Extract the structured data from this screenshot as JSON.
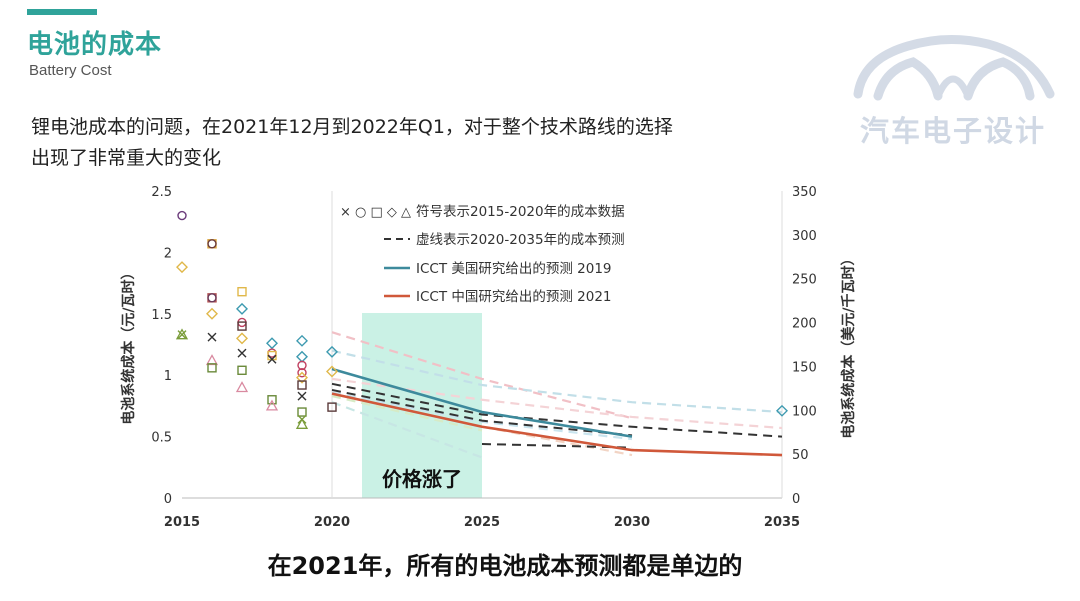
{
  "header": {
    "title": "电池的成本",
    "subtitle": "Battery Cost"
  },
  "body": {
    "line1": "锂电池成本的问题，在2021年12月到2022年Q1，对于整个技术路线的选择",
    "line2": "出现了非常重大的变化"
  },
  "logo": {
    "text": "汽车电子设计",
    "icon": "car-outline-logo"
  },
  "caption": "在2021年，所有的电池成本预测都是单边的",
  "colors": {
    "accent": "#2fa39a",
    "us_line": "#3d8a9c",
    "cn_line": "#d0583a",
    "dashed": "#333333",
    "highlight": "#b8ecdc"
  },
  "chart_data": {
    "type": "line",
    "ylabel": "电池系统成本（元/瓦时）",
    "y2label": "电池系统成本（美元/千瓦时）",
    "x_ticks": [
      "2015",
      "2020",
      "2025",
      "2030",
      "2035"
    ],
    "xlim": [
      2015,
      2035
    ],
    "ylim": [
      0,
      2.5
    ],
    "y_ticks": [
      "0",
      "0.5",
      "1",
      "1.5",
      "2",
      "2.5"
    ],
    "y2lim": [
      0,
      350
    ],
    "y2_ticks": [
      "0",
      "50",
      "100",
      "150",
      "200",
      "250",
      "300",
      "350"
    ],
    "legend": {
      "position": "top",
      "entries": [
        {
          "symbols": "× ○ □ ◇ △",
          "label": "符号表示2015-2020年的成本数据",
          "style": "symbols"
        },
        {
          "label": "虚线表示2020-2035年的成本预测",
          "style": "dashed"
        },
        {
          "label": "ICCT 美国研究给出的预测 2019",
          "style": "us"
        },
        {
          "label": "ICCT 中国研究给出的预测 2021",
          "style": "cn"
        }
      ]
    },
    "highlight": {
      "x0": 2021,
      "x1": 2025,
      "label": "价格涨了"
    },
    "series": [
      {
        "name": "ICCT 美国研究给出的预测 2019",
        "style": "us",
        "x": [
          2020,
          2025,
          2030
        ],
        "y": [
          1.05,
          0.7,
          0.5
        ]
      },
      {
        "name": "ICCT 中国研究给出的预测 2021",
        "style": "cn",
        "x": [
          2020,
          2025,
          2030,
          2035
        ],
        "y": [
          0.85,
          0.58,
          0.39,
          0.35
        ]
      }
    ],
    "forecasts_dark": [
      {
        "x": [
          2020,
          2025,
          2030,
          2035
        ],
        "y": [
          0.93,
          0.68,
          0.58,
          0.5
        ]
      },
      {
        "x": [
          2020,
          2025,
          2030
        ],
        "y": [
          0.88,
          0.63,
          0.51
        ]
      },
      {
        "x": [
          2025,
          2030
        ],
        "y": [
          0.44,
          0.41
        ]
      }
    ],
    "forecasts_light": [
      {
        "color": "#f1c0c6",
        "x": [
          2020,
          2025,
          2030
        ],
        "y": [
          1.35,
          0.97,
          0.65
        ]
      },
      {
        "color": "#c2dfe8",
        "x": [
          2020,
          2025,
          2030,
          2035
        ],
        "y": [
          1.2,
          0.92,
          0.78,
          0.7
        ]
      },
      {
        "color": "#f4d3d6",
        "x": [
          2020,
          2025,
          2030,
          2035
        ],
        "y": [
          0.97,
          0.8,
          0.66,
          0.57
        ]
      },
      {
        "color": "#d6ebc6",
        "x": [
          2020,
          2025
        ],
        "y": [
          0.83,
          0.55
        ]
      },
      {
        "color": "#c9e4ee",
        "x": [
          2020,
          2025,
          2030
        ],
        "y": [
          0.86,
          0.62,
          0.48
        ]
      },
      {
        "color": "#c7e6e4",
        "x": [
          2020,
          2025
        ],
        "y": [
          0.78,
          0.33
        ]
      },
      {
        "color": "#f2d4c4",
        "x": [
          2025,
          2030
        ],
        "y": [
          0.58,
          0.35
        ]
      }
    ],
    "points": [
      {
        "x": 2015,
        "y": 2.3,
        "m": "circle",
        "c": "#6a3a7a"
      },
      {
        "x": 2015,
        "y": 1.88,
        "m": "diamond",
        "c": "#e0b84a"
      },
      {
        "x": 2015,
        "y": 1.33,
        "m": "x",
        "c": "#7a9c3a"
      },
      {
        "x": 2015,
        "y": 1.33,
        "m": "triangle",
        "c": "#7a9c3a"
      },
      {
        "x": 2016,
        "y": 2.07,
        "m": "square",
        "c": "#d9a23a"
      },
      {
        "x": 2016,
        "y": 2.07,
        "m": "circle",
        "c": "#6a3a3a"
      },
      {
        "x": 2016,
        "y": 1.63,
        "m": "square",
        "c": "#b05050"
      },
      {
        "x": 2016,
        "y": 1.63,
        "m": "circle",
        "c": "#6a3a5a"
      },
      {
        "x": 2016,
        "y": 1.5,
        "m": "diamond",
        "c": "#e0b84a"
      },
      {
        "x": 2016,
        "y": 1.31,
        "m": "x",
        "c": "#333333"
      },
      {
        "x": 2016,
        "y": 1.12,
        "m": "triangle",
        "c": "#d98aa0"
      },
      {
        "x": 2016,
        "y": 1.06,
        "m": "square",
        "c": "#6a8a3a"
      },
      {
        "x": 2017,
        "y": 1.68,
        "m": "square",
        "c": "#e0b84a"
      },
      {
        "x": 2017,
        "y": 1.54,
        "m": "diamond",
        "c": "#3d9ab0"
      },
      {
        "x": 2017,
        "y": 1.43,
        "m": "circle",
        "c": "#c04060"
      },
      {
        "x": 2017,
        "y": 1.4,
        "m": "square",
        "c": "#5a3a3a"
      },
      {
        "x": 2017,
        "y": 1.3,
        "m": "diamond",
        "c": "#e0b84a"
      },
      {
        "x": 2017,
        "y": 1.18,
        "m": "x",
        "c": "#333333"
      },
      {
        "x": 2017,
        "y": 1.04,
        "m": "square",
        "c": "#6a8a3a"
      },
      {
        "x": 2017,
        "y": 0.9,
        "m": "triangle",
        "c": "#d98aa0"
      },
      {
        "x": 2018,
        "y": 1.26,
        "m": "diamond",
        "c": "#3d9ab0"
      },
      {
        "x": 2018,
        "y": 1.18,
        "m": "circle",
        "c": "#c04060"
      },
      {
        "x": 2018,
        "y": 1.16,
        "m": "square",
        "c": "#e0b84a"
      },
      {
        "x": 2018,
        "y": 1.13,
        "m": "x",
        "c": "#333333"
      },
      {
        "x": 2018,
        "y": 0.8,
        "m": "square",
        "c": "#6a8a3a"
      },
      {
        "x": 2018,
        "y": 0.75,
        "m": "triangle",
        "c": "#d98aa0"
      },
      {
        "x": 2019,
        "y": 1.28,
        "m": "diamond",
        "c": "#3d9ab0"
      },
      {
        "x": 2019,
        "y": 1.15,
        "m": "diamond",
        "c": "#3d9ab0"
      },
      {
        "x": 2019,
        "y": 1.08,
        "m": "circle",
        "c": "#c04060"
      },
      {
        "x": 2019,
        "y": 1.02,
        "m": "circle",
        "c": "#c04060"
      },
      {
        "x": 2019,
        "y": 0.98,
        "m": "diamond",
        "c": "#e0b84a"
      },
      {
        "x": 2019,
        "y": 0.92,
        "m": "square",
        "c": "#5a3a3a"
      },
      {
        "x": 2019,
        "y": 0.83,
        "m": "x",
        "c": "#333333"
      },
      {
        "x": 2019,
        "y": 0.7,
        "m": "square",
        "c": "#6a8a3a"
      },
      {
        "x": 2019,
        "y": 0.64,
        "m": "x",
        "c": "#7a9c3a"
      },
      {
        "x": 2019,
        "y": 0.6,
        "m": "triangle",
        "c": "#7a9c3a"
      },
      {
        "x": 2020,
        "y": 1.19,
        "m": "diamond",
        "c": "#3d9ab0"
      },
      {
        "x": 2020,
        "y": 1.03,
        "m": "diamond",
        "c": "#e0b84a"
      },
      {
        "x": 2020,
        "y": 0.74,
        "m": "square",
        "c": "#5a3a3a"
      },
      {
        "x": 2035,
        "y": 0.71,
        "m": "diamond",
        "c": "#3d9ab0"
      }
    ]
  }
}
